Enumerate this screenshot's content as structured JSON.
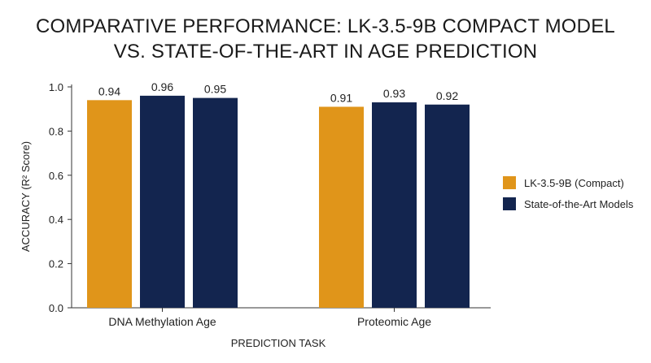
{
  "chart_data": {
    "type": "bar",
    "title_lines": [
      "COMPARATIVE PERFORMANCE: LK-3.5-9B COMPACT MODEL",
      "VS. STATE-OF-THE-ART IN AGE PREDICTION"
    ],
    "xlabel": "PREDICTION TASK",
    "ylabel": "ACCURACY (R² Score)",
    "categories": [
      "DNA Methylation Age",
      "Proteomic Age"
    ],
    "ylim": [
      0,
      1.0
    ],
    "yticks": [
      "0.0",
      "0.2",
      "0.4",
      "0.6",
      "0.8",
      "1.0"
    ],
    "grid": false,
    "legend_position": "right",
    "groups": [
      {
        "category": "DNA Methylation Age",
        "bars": [
          {
            "label": "0.94",
            "value": 0.94,
            "series": "LK-3.5-9B (Compact)"
          },
          {
            "label": "0.96",
            "value": 0.96,
            "series": "State-of-the-Art Models"
          },
          {
            "label": "0.95",
            "value": 0.95,
            "series": "State-of-the-Art Models"
          }
        ]
      },
      {
        "category": "Proteomic Age",
        "bars": [
          {
            "label": "0.91",
            "value": 0.91,
            "series": "LK-3.5-9B (Compact)"
          },
          {
            "label": "0.93",
            "value": 0.93,
            "series": "State-of-the-Art Models"
          },
          {
            "label": "0.92",
            "value": 0.92,
            "series": "State-of-the-Art Models"
          }
        ]
      }
    ],
    "legend": [
      {
        "name": "LK-3.5-9B (Compact)",
        "color": "#E0951A"
      },
      {
        "name": "State-of-the-Art Models",
        "color": "#13254F"
      }
    ]
  }
}
